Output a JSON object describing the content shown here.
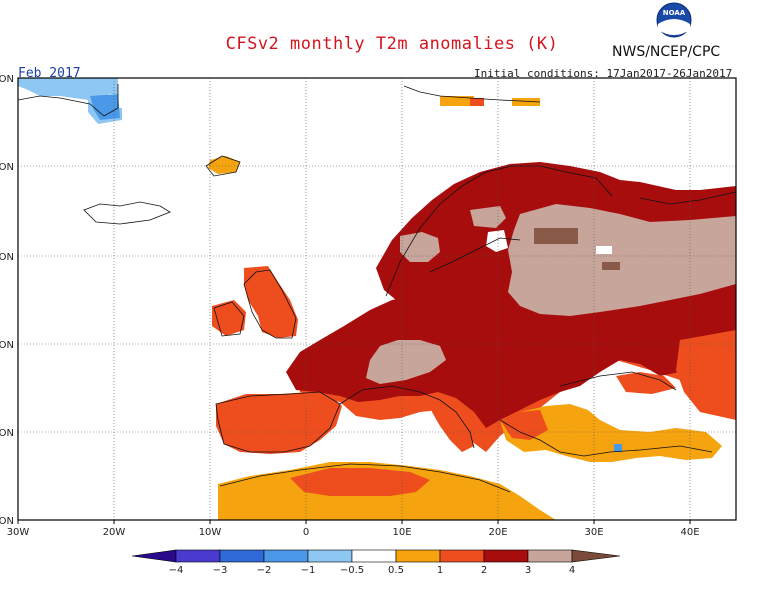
{
  "title": "CFSv2 monthly T2m anomalies (K)",
  "agency": "NWS/NCEP/CPC",
  "period": "Feb 2017",
  "initial_conditions": "Initial conditions: 17Jan2017-26Jan2017",
  "logo_text": "NOAA",
  "lon_labels": [
    "30W",
    "20W",
    "10W",
    "0",
    "10E",
    "20E",
    "30E",
    "40E"
  ],
  "lat_labels": [
    "ON",
    "ON",
    "ON",
    "ON",
    "ON",
    "ON"
  ],
  "colorbar": {
    "labels": [
      "−4",
      "−3",
      "−2",
      "−1",
      "−0.5",
      "0.5",
      "1",
      "2",
      "3",
      "4"
    ],
    "colors": [
      "#2a0a8c",
      "#4a3ad0",
      "#2f6ad8",
      "#4a98e8",
      "#8ec8f2",
      "#ffffff",
      "#f5a30e",
      "#ee4d1e",
      "#a80d0d",
      "#c8a59a",
      "#7a4a3a"
    ]
  },
  "colors": {
    "title": "#d4141e",
    "period": "#1d3ea8",
    "orange": "#f5a30e",
    "red": "#ee4d1e",
    "darkred": "#a80d0d",
    "pink": "#c8a59a",
    "brown": "#8a5a48",
    "lightblue": "#8ec8f2",
    "blue": "#4a98e8"
  }
}
